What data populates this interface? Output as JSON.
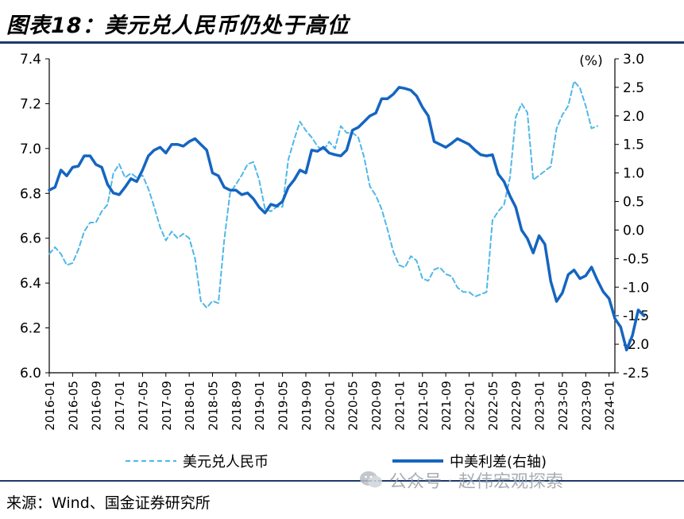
{
  "figure_title": "图表18：美元兑人民币仍处于高位",
  "source_note": "来源：Wind、国金证券研究所",
  "watermark": "公众号 · 赵伟宏观探索",
  "chart_data": {
    "type": "line",
    "title": "",
    "x_ticks": [
      "2016-01",
      "2016-05",
      "2016-09",
      "2017-01",
      "2017-05",
      "2017-09",
      "2018-01",
      "2018-05",
      "2018-09",
      "2019-01",
      "2019-05",
      "2019-09",
      "2020-01",
      "2020-05",
      "2020-09",
      "2021-01",
      "2021-05",
      "2021-09",
      "2022-01",
      "2022-05",
      "2022-09",
      "2023-01",
      "2023-05",
      "2023-09",
      "2024-01"
    ],
    "left_axis": {
      "ylim": [
        6.0,
        7.4
      ],
      "ticks": [
        "6.0",
        "6.2",
        "6.4",
        "6.6",
        "6.8",
        "7.0",
        "7.2",
        "7.4"
      ]
    },
    "right_axis": {
      "unit": "(%)",
      "ylim": [
        -2.5,
        3.0
      ],
      "ticks": [
        "-2.5",
        "-2.0",
        "-1.5",
        "-1.0",
        "-0.5",
        "0.0",
        "0.5",
        "1.0",
        "1.5",
        "2.0",
        "2.5",
        "3.0"
      ]
    },
    "x_start": "2016-01",
    "x_end": "2024-02",
    "colors": {
      "usdcny": "#4fb8e8",
      "spread": "#1565c0",
      "axis": "#000000",
      "rule": "#1f3a6b"
    },
    "series": [
      {
        "name": "美元兑人民币",
        "axis": "left",
        "style": "dashed",
        "values": [
          6.53,
          6.56,
          6.53,
          6.48,
          6.49,
          6.55,
          6.63,
          6.67,
          6.67,
          6.72,
          6.75,
          6.89,
          6.93,
          6.87,
          6.89,
          6.87,
          6.88,
          6.82,
          6.74,
          6.65,
          6.59,
          6.63,
          6.6,
          6.62,
          6.6,
          6.51,
          6.32,
          6.29,
          6.32,
          6.31,
          6.59,
          6.8,
          6.84,
          6.88,
          6.93,
          6.94,
          6.86,
          6.73,
          6.72,
          6.74,
          6.74,
          6.95,
          7.04,
          7.12,
          7.08,
          7.05,
          7.01,
          6.99,
          7.03,
          7.0,
          7.1,
          7.07,
          7.07,
          7.05,
          6.96,
          6.83,
          6.79,
          6.73,
          6.64,
          6.54,
          6.48,
          6.47,
          6.52,
          6.5,
          6.42,
          6.41,
          6.46,
          6.47,
          6.44,
          6.43,
          6.38,
          6.36,
          6.36,
          6.34,
          6.35,
          6.36,
          6.68,
          6.72,
          6.75,
          6.87,
          7.14,
          7.2,
          7.16,
          6.86,
          6.88,
          6.9,
          6.92,
          7.09,
          7.15,
          7.19,
          7.3,
          7.27,
          7.19,
          7.09,
          7.1
        ]
      },
      {
        "name": "中美利差(右轴)",
        "axis": "right",
        "style": "solid",
        "values": [
          0.7,
          0.75,
          1.05,
          0.95,
          1.1,
          1.12,
          1.3,
          1.3,
          1.15,
          1.1,
          0.8,
          0.65,
          0.62,
          0.75,
          0.9,
          0.85,
          1.05,
          1.3,
          1.4,
          1.45,
          1.35,
          1.5,
          1.5,
          1.47,
          1.55,
          1.6,
          1.5,
          1.4,
          1.0,
          0.95,
          0.75,
          0.7,
          0.7,
          0.62,
          0.65,
          0.55,
          0.4,
          0.3,
          0.45,
          0.42,
          0.5,
          0.75,
          0.88,
          1.05,
          1.0,
          1.4,
          1.38,
          1.45,
          1.35,
          1.32,
          1.3,
          1.4,
          1.75,
          1.8,
          1.9,
          2.0,
          2.05,
          2.3,
          2.3,
          2.38,
          2.5,
          2.48,
          2.45,
          2.35,
          2.15,
          2.0,
          1.55,
          1.5,
          1.45,
          1.52,
          1.6,
          1.55,
          1.5,
          1.4,
          1.32,
          1.3,
          1.32,
          0.98,
          0.85,
          0.6,
          0.4,
          0.0,
          -0.15,
          -0.4,
          -0.1,
          -0.25,
          -0.9,
          -1.25,
          -1.1,
          -0.78,
          -0.7,
          -0.85,
          -0.8,
          -0.65,
          -0.88,
          -1.08,
          -1.2,
          -1.55,
          -1.7,
          -2.1,
          -1.85,
          -1.4,
          -1.5
        ]
      }
    ]
  }
}
